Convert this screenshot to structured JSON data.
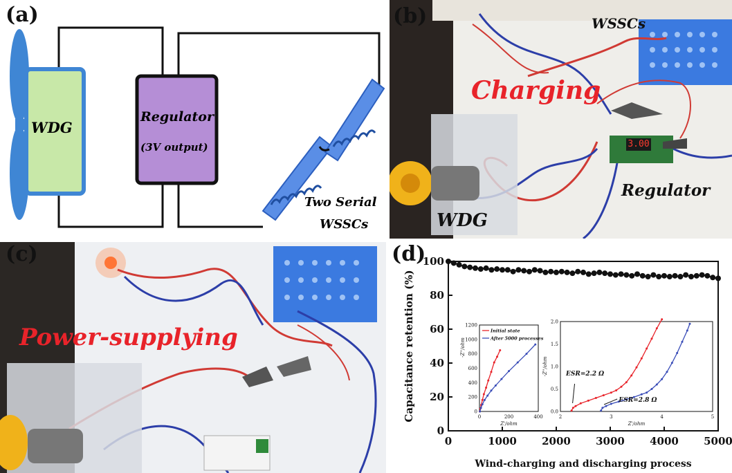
{
  "panel_a": {
    "label": "(a)",
    "wdg": "WDG",
    "regulator": "Regulator",
    "regulator_output": "(3V output)",
    "wsscs_line1": "Two Serial",
    "wsscs_line2": "WSSCs"
  },
  "panel_b": {
    "label": "(b)",
    "wsscs": "WSSCs",
    "charging": "Charging",
    "regulator": "Regulator",
    "wdg": "WDG",
    "display": "3.00"
  },
  "panel_c": {
    "label": "(c)",
    "power": "Power-supplying"
  },
  "panel_d": {
    "label": "(d)"
  },
  "colors": {
    "red_text": "#e8232a",
    "blue_basket": "#2e6fd6",
    "wdg_fill": "#c8e8a8",
    "reg_fill": "#b58ed6",
    "main_series": "#111111",
    "inset_red": "#e8232a",
    "inset_blue": "#3a4db8"
  },
  "chart_data": [
    {
      "type": "scatter",
      "xlabel": "Wind-charging and discharging process",
      "ylabel": "Capacitance retention (%)",
      "xlim": [
        0,
        5000
      ],
      "ylim": [
        0,
        100
      ],
      "xticks": [
        "0",
        "1000",
        "2000",
        "3000",
        "4000",
        "5000"
      ],
      "yticks": [
        "0",
        "20",
        "40",
        "60",
        "80",
        "100"
      ],
      "series": [
        {
          "x": [
            0,
            100,
            200,
            300,
            400,
            500,
            600,
            700,
            800,
            900,
            1000,
            1100,
            1200,
            1300,
            1400,
            1500,
            1600,
            1700,
            1800,
            1900,
            2000,
            2100,
            2200,
            2300,
            2400,
            2500,
            2600,
            2700,
            2800,
            2900,
            3000,
            3100,
            3200,
            3300,
            3400,
            3500,
            3600,
            3700,
            3800,
            3900,
            4000,
            4100,
            4200,
            4300,
            4400,
            4500,
            4600,
            4700,
            4800,
            4900,
            5000
          ],
          "y": [
            100,
            99,
            98,
            97,
            96.5,
            96,
            95.5,
            96,
            95,
            95.5,
            95,
            95,
            94,
            95,
            94.5,
            94,
            95,
            94.5,
            93.5,
            94,
            93.5,
            94,
            93.5,
            93,
            94,
            93.5,
            92.5,
            93,
            93.5,
            93,
            92.5,
            92,
            92.5,
            92,
            91.5,
            92.5,
            91.5,
            91,
            92,
            91,
            91.5,
            91,
            91.5,
            91,
            92,
            91,
            91.5,
            92,
            91.5,
            90.5,
            90
          ]
        }
      ]
    },
    {
      "type": "line",
      "xlabel": "Z'/ohm",
      "ylabel": "-Z''/ohm",
      "xlim": [
        0,
        400
      ],
      "ylim": [
        0,
        1200
      ],
      "xticks": [
        "0",
        "200",
        "400"
      ],
      "yticks": [
        "0",
        "200",
        "400",
        "600",
        "800",
        "1000",
        "1200"
      ],
      "series": [
        {
          "name": "Initial state",
          "x": [
            2,
            6,
            12,
            20,
            30,
            45,
            60,
            80,
            100,
            120,
            140
          ],
          "y": [
            0,
            40,
            90,
            160,
            240,
            330,
            430,
            550,
            680,
            760,
            850
          ]
        },
        {
          "name": "After 5000 processes",
          "x": [
            3,
            10,
            20,
            35,
            55,
            80,
            110,
            150,
            200,
            260,
            320,
            380
          ],
          "y": [
            0,
            50,
            100,
            160,
            220,
            290,
            360,
            450,
            560,
            680,
            800,
            930
          ]
        }
      ]
    },
    {
      "type": "line",
      "xlabel": "Z'/ohm",
      "ylabel": "-Z''/ohm",
      "xlim": [
        2,
        5
      ],
      "ylim": [
        0.0,
        2.0
      ],
      "xticks": [
        "2",
        "3",
        "4",
        "5"
      ],
      "yticks": [
        "0.0",
        "0.5",
        "1.0",
        "1.5",
        "2.0"
      ],
      "annotations": [
        "ESR=2.2 Ω",
        "ESR=2.8 Ω"
      ],
      "series": [
        {
          "name": "Initial state",
          "x": [
            2.22,
            2.25,
            2.3,
            2.4,
            2.55,
            2.7,
            2.85,
            3.0,
            3.1,
            3.2,
            3.3,
            3.4,
            3.5,
            3.6,
            3.7,
            3.8,
            3.9,
            4.0
          ],
          "y": [
            0.02,
            0.08,
            0.12,
            0.18,
            0.24,
            0.3,
            0.36,
            0.42,
            0.47,
            0.55,
            0.65,
            0.8,
            0.98,
            1.18,
            1.4,
            1.62,
            1.85,
            2.05
          ]
        },
        {
          "name": "After 5000 processes",
          "x": [
            2.8,
            2.83,
            2.9,
            3.0,
            3.15,
            3.3,
            3.45,
            3.6,
            3.7,
            3.8,
            3.9,
            4.0,
            4.1,
            4.2,
            4.3,
            4.4,
            4.5,
            4.55
          ],
          "y": [
            0.02,
            0.08,
            0.12,
            0.17,
            0.22,
            0.27,
            0.32,
            0.38,
            0.42,
            0.5,
            0.6,
            0.72,
            0.88,
            1.08,
            1.3,
            1.55,
            1.8,
            1.95
          ]
        }
      ]
    }
  ]
}
